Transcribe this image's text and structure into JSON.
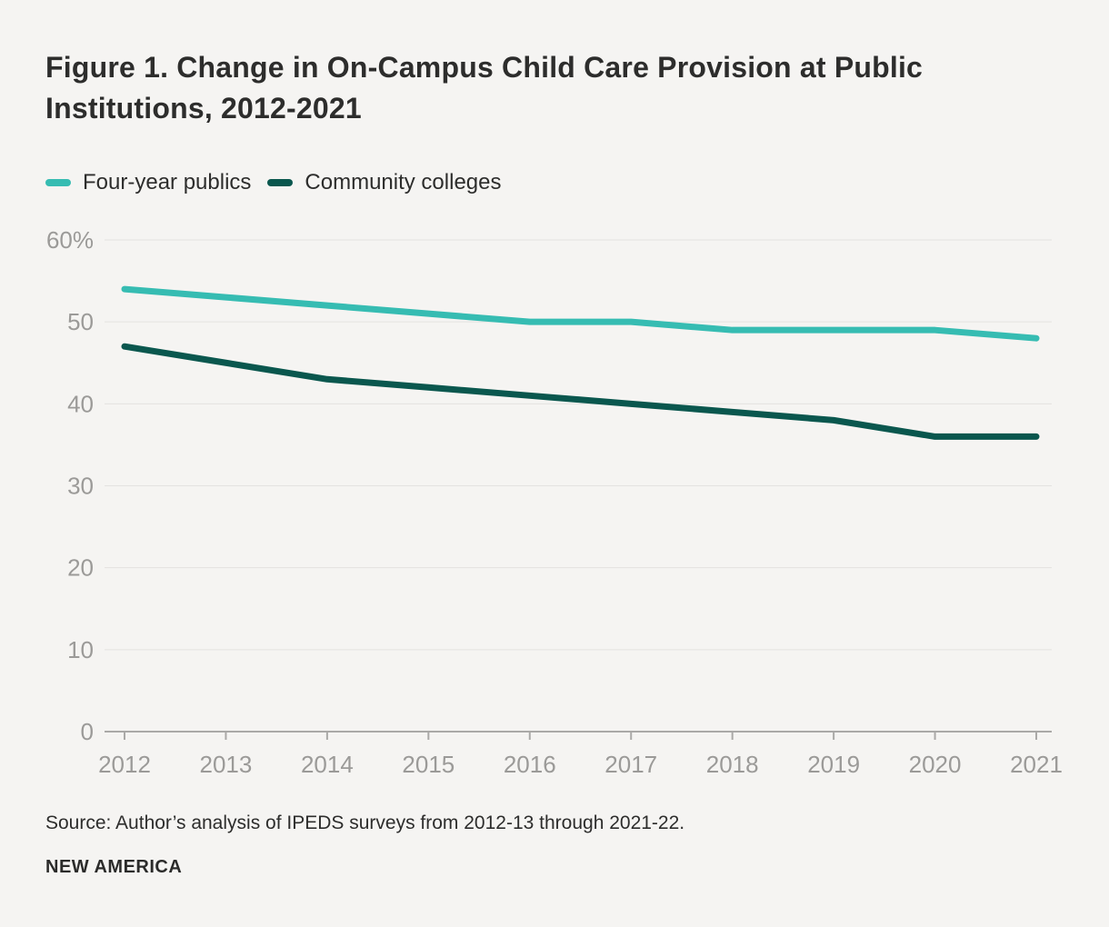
{
  "page": {
    "background": "#f5f4f2"
  },
  "title": {
    "line1": "Figure 1. Change in On-Campus Child Care Provision at Public",
    "line2": "Institutions, 2012-2021"
  },
  "legend": [
    {
      "label": "Four-year publics",
      "color": "#36bcb2"
    },
    {
      "label": "Community colleges",
      "color": "#0a574e"
    }
  ],
  "chart_data": {
    "type": "line",
    "title": "Figure 1. Change in On-Campus Child Care Provision at Public Institutions, 2012-2021",
    "x": [
      "2012",
      "2013",
      "2014",
      "2015",
      "2016",
      "2017",
      "2018",
      "2019",
      "2020",
      "2021"
    ],
    "series": [
      {
        "name": "Four-year publics",
        "color": "#36bcb2",
        "values": [
          54,
          53,
          52,
          51,
          50,
          50,
          49,
          49,
          49,
          48
        ]
      },
      {
        "name": "Community colleges",
        "color": "#0a574e",
        "values": [
          47,
          45,
          43,
          42,
          41,
          40,
          39,
          38,
          36,
          36
        ]
      }
    ],
    "ylim": [
      0,
      60
    ],
    "yticks": [
      {
        "label": "60%",
        "value": 60
      },
      {
        "label": "50",
        "value": 50
      },
      {
        "label": "40",
        "value": 40
      },
      {
        "label": "30",
        "value": 30
      },
      {
        "label": "20",
        "value": 20
      },
      {
        "label": "10",
        "value": 10
      },
      {
        "label": "0",
        "value": 0
      }
    ],
    "grid": "horizontal",
    "legend_position": "top-left",
    "unit": "%"
  },
  "footer": {
    "source": "Source: Author’s analysis of IPEDS surveys from 2012-13 through 2021-22.",
    "brand": "NEW AMERICA"
  }
}
